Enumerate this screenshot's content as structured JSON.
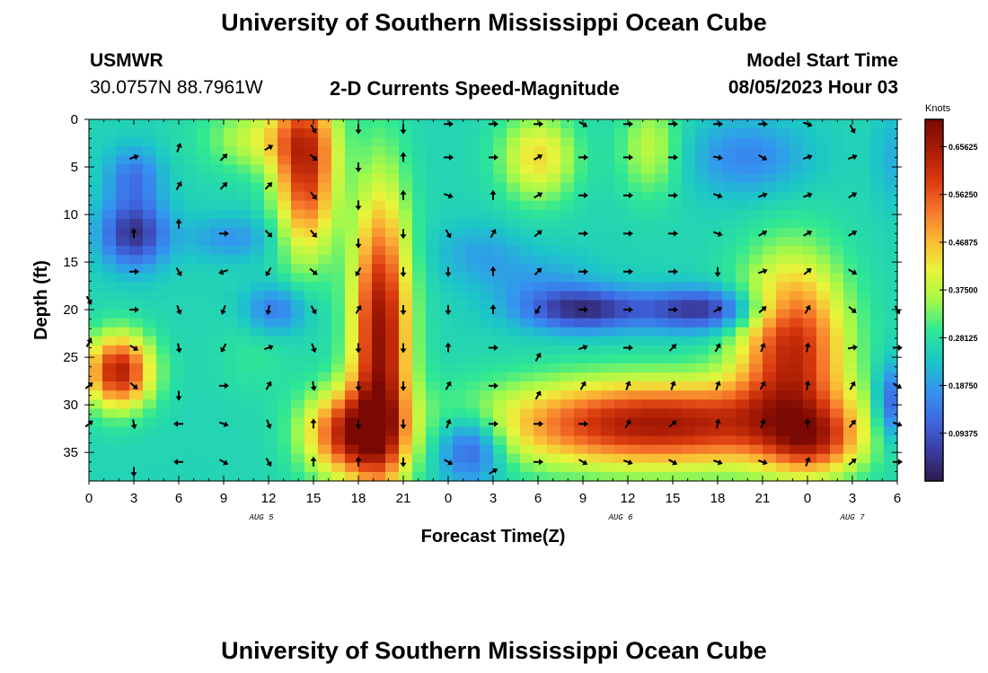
{
  "header": {
    "title": "University of Southern Mississippi Ocean Cube",
    "station": "USMWR",
    "coords": "30.0757N  88.7961W",
    "plot_title": "2-D Currents Speed-Magnitude",
    "model_label": "Model Start Time",
    "model_time": "08/05/2023 Hour 03",
    "footer_title": "University of Southern Mississippi Ocean Cube"
  },
  "chart_data": {
    "type": "heatmap",
    "xlabel": "Forecast Time(Z)",
    "ylabel": "Depth (ft)",
    "x_tick_labels": [
      "0",
      "3",
      "6",
      "9",
      "12",
      "15",
      "18",
      "21",
      "0",
      "3",
      "6",
      "9",
      "12",
      "15",
      "18",
      "21",
      "0",
      "3",
      "6"
    ],
    "y_tick_labels": [
      "0",
      "5",
      "10",
      "15",
      "20",
      "25",
      "30",
      "35"
    ],
    "ylim": [
      0,
      38
    ],
    "y_inverted": true,
    "date_labels": [
      {
        "text": "AUG 5",
        "hour": 12
      },
      {
        "text": "AUG 6",
        "hour": 36
      },
      {
        "text": "AUG 7",
        "hour": 51
      }
    ],
    "colorbar": {
      "title": "Knots",
      "range": [
        0.0,
        0.71
      ],
      "tick_labels": [
        "0.65625",
        "0.56250",
        "0.46875",
        "0.37500",
        "0.28125",
        "0.18750",
        "0.09375"
      ],
      "tick_values": [
        0.65625,
        0.5625,
        0.46875,
        0.375,
        0.28125,
        0.1875,
        0.09375
      ]
    },
    "colors": {
      "c0": "#2e1a4c",
      "c1": "#3a3da1",
      "c2": "#3f68e3",
      "c3": "#3494f0",
      "c4": "#1cc6c8",
      "c5": "#2fe893",
      "c6": "#a3f94a",
      "c7": "#eaf43a",
      "c8": "#fbb835",
      "c9": "#f5742a",
      "c10": "#d8390e",
      "c11": "#a91c04",
      "c12": "#7a0903"
    },
    "speed_fields": {
      "base": 0.26,
      "blobs": [
        [
          3,
          12,
          2.2,
          3.5,
          -0.22
        ],
        [
          3,
          6,
          1.8,
          3,
          -0.12
        ],
        [
          9.5,
          12.5,
          3,
          2.3,
          -0.08
        ],
        [
          2,
          26.5,
          2.2,
          3.8,
          0.38
        ],
        [
          11.5,
          2,
          3.5,
          3.5,
          0.13
        ],
        [
          14.5,
          5,
          2,
          9,
          0.35
        ],
        [
          12.5,
          20,
          2,
          2.5,
          -0.12
        ],
        [
          11,
          25,
          2.5,
          4,
          0.03
        ],
        [
          19.5,
          23,
          1.9,
          15,
          0.42
        ],
        [
          17.5,
          33,
          3,
          4.5,
          0.36
        ],
        [
          25.5,
          34.5,
          2.2,
          3.5,
          -0.2
        ],
        [
          26,
          14,
          3,
          3,
          -0.06
        ],
        [
          30,
          17,
          4,
          3,
          -0.06
        ],
        [
          30,
          4,
          2.5,
          4.5,
          0.18
        ],
        [
          37.5,
          3,
          2,
          5,
          0.12
        ],
        [
          44,
          4,
          4,
          4,
          -0.1
        ],
        [
          33,
          20,
          4,
          2.2,
          -0.22
        ],
        [
          41,
          20,
          4,
          2.2,
          -0.22
        ],
        [
          38,
          32,
          11,
          4.5,
          0.4
        ],
        [
          47,
          24,
          3.5,
          9,
          0.36
        ],
        [
          48.5,
          34,
          3,
          3.5,
          0.2
        ],
        [
          53.5,
          30,
          1,
          4,
          -0.18
        ],
        [
          53.5,
          4,
          1,
          5,
          -0.05
        ]
      ]
    },
    "vectors": [
      {
        "x": 3,
        "y": 12,
        "a": -90
      },
      {
        "x": 3,
        "y": 4,
        "a": -20
      },
      {
        "x": 3,
        "y": 20,
        "a": 0
      },
      {
        "x": 3,
        "y": 24,
        "a": 30
      },
      {
        "x": 3,
        "y": 28,
        "a": 40
      },
      {
        "x": 3,
        "y": 32,
        "a": 80
      },
      {
        "x": 3,
        "y": 37,
        "a": 90
      },
      {
        "x": 3,
        "y": 16,
        "a": 0
      },
      {
        "x": 0,
        "y": 19,
        "a": 60
      },
      {
        "x": 0,
        "y": 23.5,
        "a": -60
      },
      {
        "x": 0,
        "y": 28,
        "a": -40
      },
      {
        "x": 0,
        "y": 32,
        "a": -40
      },
      {
        "x": 6,
        "y": 3,
        "a": -70
      },
      {
        "x": 6,
        "y": 7,
        "a": -60
      },
      {
        "x": 6,
        "y": 11,
        "a": -90
      },
      {
        "x": 6,
        "y": 16,
        "a": 60
      },
      {
        "x": 6,
        "y": 20,
        "a": 70
      },
      {
        "x": 6,
        "y": 24,
        "a": 80
      },
      {
        "x": 6,
        "y": 29,
        "a": 90
      },
      {
        "x": 6,
        "y": 32,
        "a": 180
      },
      {
        "x": 6,
        "y": 36,
        "a": 180
      },
      {
        "x": 9,
        "y": 4,
        "a": -45
      },
      {
        "x": 9,
        "y": 7,
        "a": -45
      },
      {
        "x": 9,
        "y": 12,
        "a": 0
      },
      {
        "x": 9,
        "y": 16,
        "a": 160
      },
      {
        "x": 9,
        "y": 20,
        "a": 110
      },
      {
        "x": 9,
        "y": 24,
        "a": 120
      },
      {
        "x": 9,
        "y": 28,
        "a": 0
      },
      {
        "x": 9,
        "y": 32,
        "a": 20
      },
      {
        "x": 9,
        "y": 36,
        "a": 30
      },
      {
        "x": 12,
        "y": 3,
        "a": -30
      },
      {
        "x": 12,
        "y": 7,
        "a": -45
      },
      {
        "x": 12,
        "y": 12,
        "a": 45
      },
      {
        "x": 12,
        "y": 16,
        "a": 120
      },
      {
        "x": 12,
        "y": 20,
        "a": 100
      },
      {
        "x": 12,
        "y": 24,
        "a": -20
      },
      {
        "x": 12,
        "y": 28,
        "a": -60
      },
      {
        "x": 12,
        "y": 32,
        "a": 70
      },
      {
        "x": 12,
        "y": 36,
        "a": 60
      },
      {
        "x": 15,
        "y": 1,
        "a": 60
      },
      {
        "x": 15,
        "y": 4,
        "a": 40
      },
      {
        "x": 15,
        "y": 8,
        "a": 50
      },
      {
        "x": 15,
        "y": 12,
        "a": 50
      },
      {
        "x": 15,
        "y": 16,
        "a": 40
      },
      {
        "x": 15,
        "y": 20,
        "a": 60
      },
      {
        "x": 15,
        "y": 24,
        "a": 70
      },
      {
        "x": 15,
        "y": 28,
        "a": 80
      },
      {
        "x": 15,
        "y": 32,
        "a": -90
      },
      {
        "x": 15,
        "y": 36,
        "a": -90
      },
      {
        "x": 18,
        "y": 1,
        "a": 90
      },
      {
        "x": 18,
        "y": 5,
        "a": 90
      },
      {
        "x": 18,
        "y": 9,
        "a": 90
      },
      {
        "x": 18,
        "y": 13,
        "a": 90
      },
      {
        "x": 18,
        "y": 16,
        "a": 120
      },
      {
        "x": 18,
        "y": 20,
        "a": -60
      },
      {
        "x": 18,
        "y": 24,
        "a": 90
      },
      {
        "x": 18,
        "y": 28,
        "a": 90
      },
      {
        "x": 18,
        "y": 32,
        "a": 90
      },
      {
        "x": 18,
        "y": 36,
        "a": -90
      },
      {
        "x": 21,
        "y": 1,
        "a": 90
      },
      {
        "x": 21,
        "y": 4,
        "a": -90
      },
      {
        "x": 21,
        "y": 8,
        "a": -90
      },
      {
        "x": 21,
        "y": 12,
        "a": 90
      },
      {
        "x": 21,
        "y": 16,
        "a": 90
      },
      {
        "x": 21,
        "y": 20,
        "a": 90
      },
      {
        "x": 21,
        "y": 24,
        "a": 90
      },
      {
        "x": 21,
        "y": 28,
        "a": 90
      },
      {
        "x": 21,
        "y": 32,
        "a": 90
      },
      {
        "x": 21,
        "y": 36,
        "a": 90
      },
      {
        "x": 24,
        "y": 0.5,
        "a": 0
      },
      {
        "x": 24,
        "y": 4,
        "a": 0
      },
      {
        "x": 24,
        "y": 8,
        "a": 20
      },
      {
        "x": 24,
        "y": 12,
        "a": 60
      },
      {
        "x": 24,
        "y": 16,
        "a": 90
      },
      {
        "x": 24,
        "y": 20,
        "a": 90
      },
      {
        "x": 24,
        "y": 24,
        "a": -90
      },
      {
        "x": 24,
        "y": 28,
        "a": -60
      },
      {
        "x": 24,
        "y": 32,
        "a": -70
      },
      {
        "x": 24,
        "y": 36,
        "a": 30
      },
      {
        "x": 27,
        "y": 0.5,
        "a": 0
      },
      {
        "x": 27,
        "y": 4,
        "a": 0
      },
      {
        "x": 27,
        "y": 8,
        "a": -90
      },
      {
        "x": 27,
        "y": 12,
        "a": -60
      },
      {
        "x": 27,
        "y": 16,
        "a": -90
      },
      {
        "x": 27,
        "y": 20,
        "a": -90
      },
      {
        "x": 27,
        "y": 24,
        "a": 0
      },
      {
        "x": 27,
        "y": 28,
        "a": 0
      },
      {
        "x": 27,
        "y": 32,
        "a": 0
      },
      {
        "x": 27,
        "y": 37,
        "a": -30
      },
      {
        "x": 30,
        "y": 0.5,
        "a": 0
      },
      {
        "x": 30,
        "y": 4,
        "a": -30
      },
      {
        "x": 30,
        "y": 8,
        "a": -30
      },
      {
        "x": 30,
        "y": 12,
        "a": -40
      },
      {
        "x": 30,
        "y": 16,
        "a": -45
      },
      {
        "x": 30,
        "y": 20,
        "a": 120
      },
      {
        "x": 30,
        "y": 25,
        "a": -60
      },
      {
        "x": 30,
        "y": 29,
        "a": -60
      },
      {
        "x": 30,
        "y": 32,
        "a": 0
      },
      {
        "x": 30,
        "y": 36,
        "a": 0
      },
      {
        "x": 33,
        "y": 0.5,
        "a": 30
      },
      {
        "x": 33,
        "y": 4,
        "a": 0
      },
      {
        "x": 33,
        "y": 8,
        "a": 0
      },
      {
        "x": 33,
        "y": 12,
        "a": 0
      },
      {
        "x": 33,
        "y": 16,
        "a": 0
      },
      {
        "x": 33,
        "y": 20,
        "a": 0
      },
      {
        "x": 33,
        "y": 24,
        "a": -20
      },
      {
        "x": 33,
        "y": 28,
        "a": -60
      },
      {
        "x": 33,
        "y": 32,
        "a": 0
      },
      {
        "x": 33,
        "y": 36,
        "a": 30
      },
      {
        "x": 36,
        "y": 0.5,
        "a": 0
      },
      {
        "x": 36,
        "y": 4,
        "a": 0
      },
      {
        "x": 36,
        "y": 8,
        "a": 0
      },
      {
        "x": 36,
        "y": 12,
        "a": 0
      },
      {
        "x": 36,
        "y": 16,
        "a": 0
      },
      {
        "x": 36,
        "y": 20,
        "a": 0
      },
      {
        "x": 36,
        "y": 24,
        "a": 0
      },
      {
        "x": 36,
        "y": 28,
        "a": -70
      },
      {
        "x": 36,
        "y": 32,
        "a": -60
      },
      {
        "x": 36,
        "y": 36,
        "a": 20
      },
      {
        "x": 39,
        "y": 0.5,
        "a": 0
      },
      {
        "x": 39,
        "y": 4,
        "a": 0
      },
      {
        "x": 39,
        "y": 8,
        "a": 0
      },
      {
        "x": 39,
        "y": 12,
        "a": 0
      },
      {
        "x": 39,
        "y": 16,
        "a": 0
      },
      {
        "x": 39,
        "y": 20,
        "a": 0
      },
      {
        "x": 39,
        "y": 24,
        "a": -45
      },
      {
        "x": 39,
        "y": 28,
        "a": -70
      },
      {
        "x": 39,
        "y": 32,
        "a": -40
      },
      {
        "x": 39,
        "y": 36,
        "a": 30
      },
      {
        "x": 42,
        "y": 0.5,
        "a": 0
      },
      {
        "x": 42,
        "y": 4,
        "a": 10
      },
      {
        "x": 42,
        "y": 8,
        "a": 20
      },
      {
        "x": 42,
        "y": 12,
        "a": 20
      },
      {
        "x": 42,
        "y": 16,
        "a": 90
      },
      {
        "x": 42,
        "y": 20,
        "a": -30
      },
      {
        "x": 42,
        "y": 24,
        "a": -60
      },
      {
        "x": 42,
        "y": 28,
        "a": -70
      },
      {
        "x": 42,
        "y": 32,
        "a": -80
      },
      {
        "x": 42,
        "y": 36,
        "a": 20
      },
      {
        "x": 45,
        "y": 0.5,
        "a": 0
      },
      {
        "x": 45,
        "y": 4,
        "a": 30
      },
      {
        "x": 45,
        "y": 8,
        "a": -20
      },
      {
        "x": 45,
        "y": 12,
        "a": -30
      },
      {
        "x": 45,
        "y": 16,
        "a": -20
      },
      {
        "x": 45,
        "y": 20,
        "a": -40
      },
      {
        "x": 45,
        "y": 24,
        "a": -70
      },
      {
        "x": 45,
        "y": 28,
        "a": -60
      },
      {
        "x": 45,
        "y": 32,
        "a": -70
      },
      {
        "x": 45,
        "y": 36,
        "a": 20
      },
      {
        "x": 48,
        "y": 0.5,
        "a": 20
      },
      {
        "x": 48,
        "y": 4,
        "a": -20
      },
      {
        "x": 48,
        "y": 8,
        "a": -20
      },
      {
        "x": 48,
        "y": 12,
        "a": -30
      },
      {
        "x": 48,
        "y": 16,
        "a": -40
      },
      {
        "x": 48,
        "y": 20,
        "a": -60
      },
      {
        "x": 48,
        "y": 24,
        "a": -80
      },
      {
        "x": 48,
        "y": 28,
        "a": -80
      },
      {
        "x": 48,
        "y": 32,
        "a": -90
      },
      {
        "x": 48,
        "y": 36,
        "a": -70
      },
      {
        "x": 51,
        "y": 1,
        "a": 60
      },
      {
        "x": 51,
        "y": 4,
        "a": -20
      },
      {
        "x": 51,
        "y": 8,
        "a": -30
      },
      {
        "x": 51,
        "y": 12,
        "a": -30
      },
      {
        "x": 51,
        "y": 16,
        "a": 30
      },
      {
        "x": 51,
        "y": 20,
        "a": 40
      },
      {
        "x": 51,
        "y": 24,
        "a": -10
      },
      {
        "x": 51,
        "y": 28,
        "a": -60
      },
      {
        "x": 51,
        "y": 32,
        "a": -50
      },
      {
        "x": 51,
        "y": 36,
        "a": -40
      },
      {
        "x": 54,
        "y": 20,
        "a": 60
      },
      {
        "x": 54,
        "y": 24,
        "a": 0
      },
      {
        "x": 54,
        "y": 28,
        "a": 30
      },
      {
        "x": 54,
        "y": 32,
        "a": 20
      },
      {
        "x": 54,
        "y": 36,
        "a": 0
      }
    ]
  }
}
